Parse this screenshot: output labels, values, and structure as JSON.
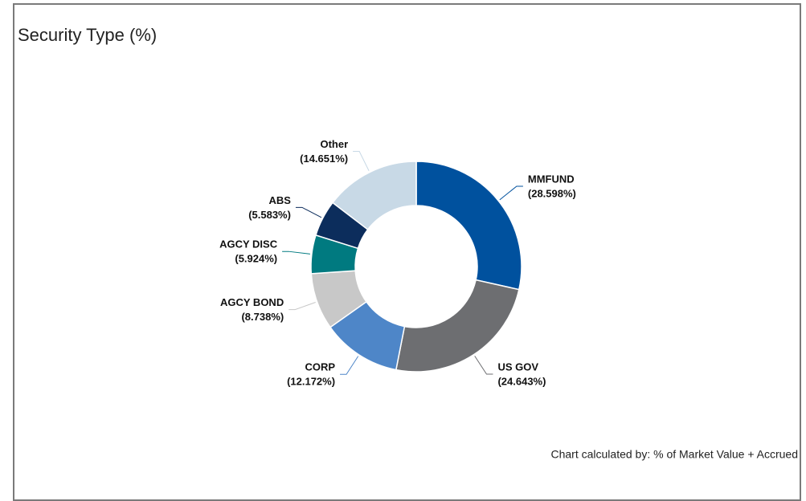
{
  "chart_data": {
    "type": "donut",
    "title": "Security Type (%)",
    "categories": [
      "MMFUND",
      "US GOV",
      "CORP",
      "AGCY BOND",
      "AGCY DISC",
      "ABS",
      "Other"
    ],
    "values": [
      28.598,
      24.643,
      12.172,
      8.738,
      5.924,
      5.583,
      14.651
    ],
    "value_labels": [
      "(28.598%)",
      "(24.643%)",
      "(12.172%)",
      "(8.738%)",
      "(5.924%)",
      "(5.583%)",
      "(14.651%)"
    ],
    "colors": [
      "#00519e",
      "#6d6e71",
      "#4e86c8",
      "#c8c8c8",
      "#007a80",
      "#0c2d5c",
      "#c8d9e6"
    ],
    "note": "Chart calculated by: % of Market Value + Accrued"
  }
}
